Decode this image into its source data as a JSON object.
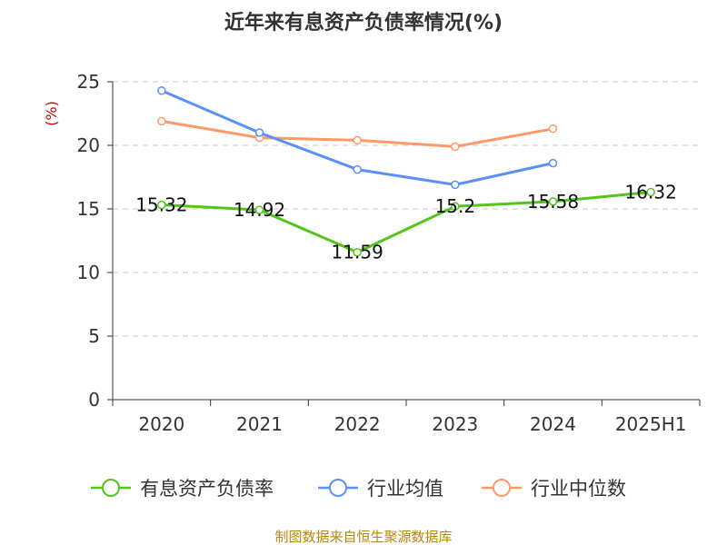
{
  "chart_data": {
    "type": "line",
    "title": "近年来有息资产负债率情况(%)",
    "ylabel": "(%)",
    "categories": [
      "2020",
      "2021",
      "2022",
      "2023",
      "2024",
      "2025H1"
    ],
    "ylim": [
      0,
      25
    ],
    "yticks": [
      0,
      5,
      10,
      15,
      20,
      25
    ],
    "grid": true,
    "legend_position": "bottom",
    "series": [
      {
        "name": "有息资产负债率",
        "color": "#52c41a",
        "values": [
          15.32,
          14.92,
          11.59,
          15.2,
          15.58,
          16.32
        ],
        "labels": [
          "15.32",
          "14.92",
          "11.59",
          "15.2",
          "15.58",
          "16.32"
        ]
      },
      {
        "name": "行业均值",
        "color": "#5b8ff9",
        "values": [
          24.3,
          21.0,
          18.1,
          16.9,
          18.6,
          null
        ]
      },
      {
        "name": "行业中位数",
        "color": "#ff9966",
        "values": [
          21.9,
          20.6,
          20.4,
          19.9,
          21.3,
          null
        ]
      }
    ]
  },
  "source": "制图数据来自恒生聚源数据库"
}
